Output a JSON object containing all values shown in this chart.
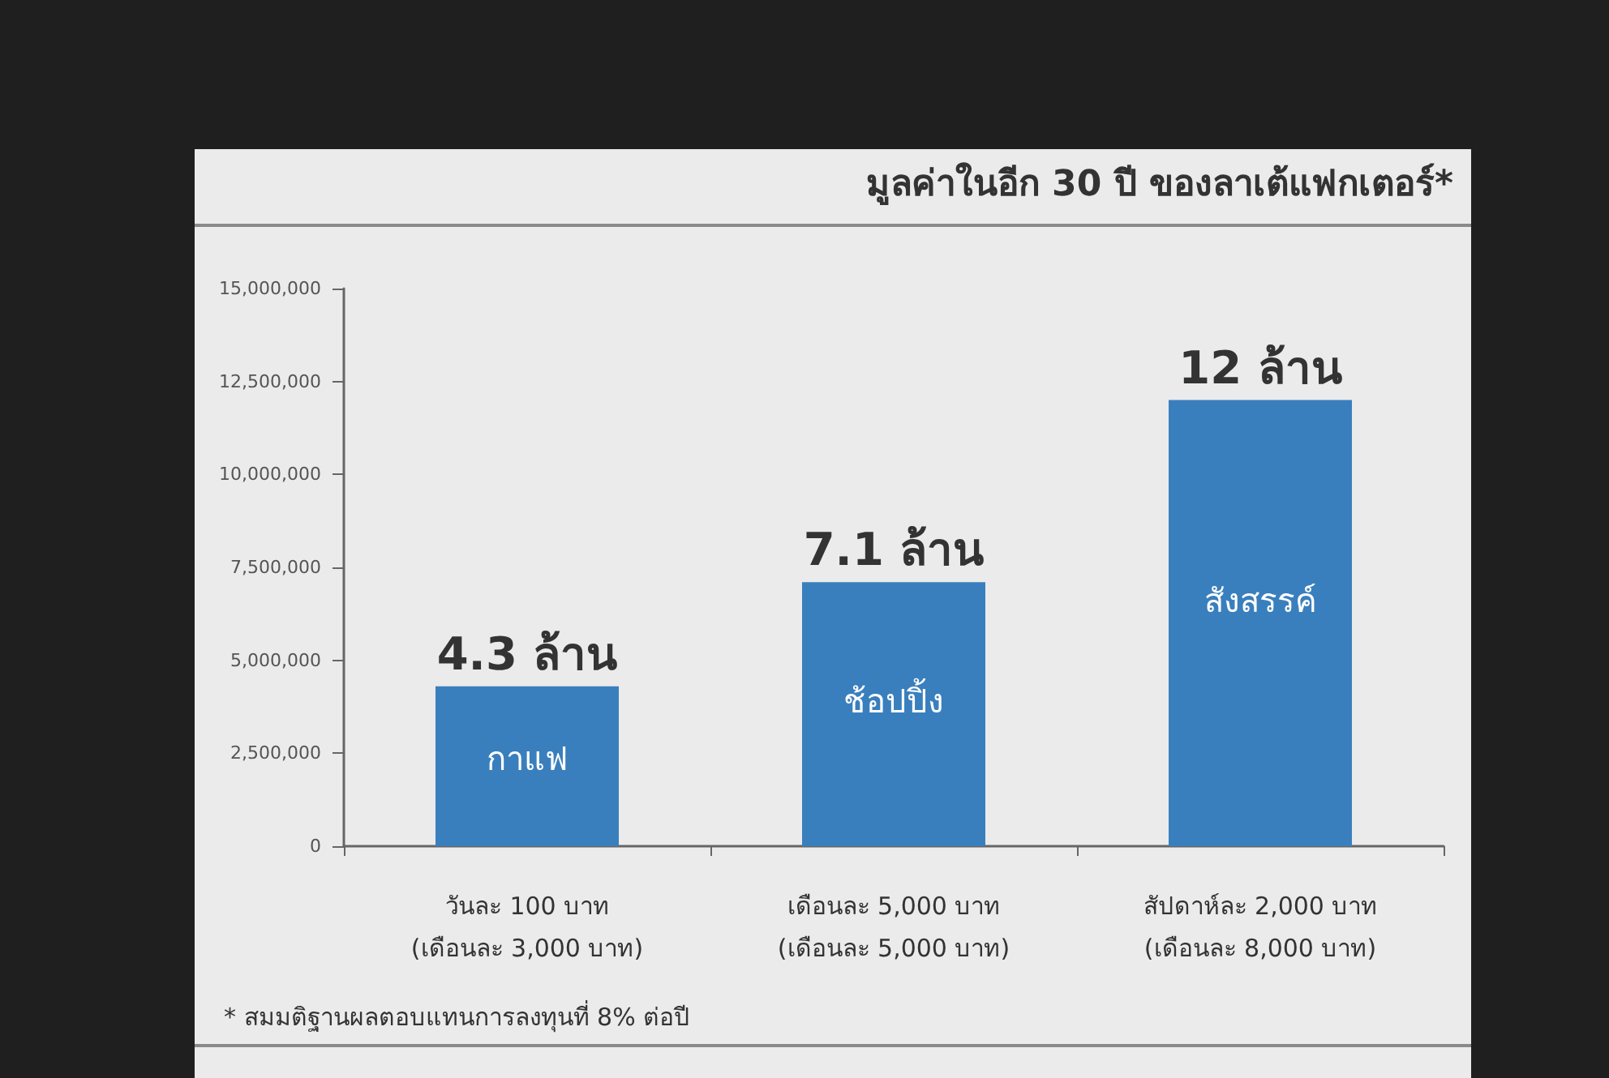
{
  "chart_data": {
    "type": "bar",
    "title": "มูลค่าในอีก 30 ปี ของลาเต้แฟกเตอร์*",
    "categories": [
      "วันละ 100 บาท\n(เดือนละ 3,000 บาท)",
      "เดือนละ 5,000 บาท\n(เดือนละ 5,000 บาท)",
      "สัปดาห์ละ 2,000 บาท\n(เดือนละ 8,000 บาท)"
    ],
    "values": [
      4300000,
      7100000,
      12000000
    ],
    "color": "#3a7fbd",
    "ylim": [
      0,
      15000000
    ],
    "yticks": [
      0,
      {
        "value": 2500000,
        "label": "2,500,000"
      },
      {
        "value": 5000000,
        "label": "5,000,000"
      },
      {
        "value": 7500000,
        "label": "7,500,000"
      },
      {
        "value": 10000000,
        "label": "10,000,000"
      },
      {
        "value": 12500000,
        "label": "12,500,000"
      },
      {
        "value": 15000000,
        "label": "15,000,000"
      }
    ],
    "grid": false,
    "annotations": [
      {
        "text": "4.3 ล้าน",
        "x": "วันละ 100 บาท\n(เดือนละ 3,000 บาท)",
        "y": 4300000
      },
      {
        "text": "7.1 ล้าน",
        "x": "เดือนละ 5,000 บาท\n(เดือนละ 5,000 บาท)",
        "y": 7100000
      },
      {
        "text": "12 ล้าน",
        "x": "สัปดาห์ละ 2,000 บาท\n(เดือนละ 8,000 บาท)",
        "y": 12000000
      },
      "กาแฟ",
      "ช้อปปิ้ง",
      "สังสรรค์",
      "* สมมติฐานผลตอบแทนการลงทุนที่ 8% ต่อปี"
    ]
  }
}
